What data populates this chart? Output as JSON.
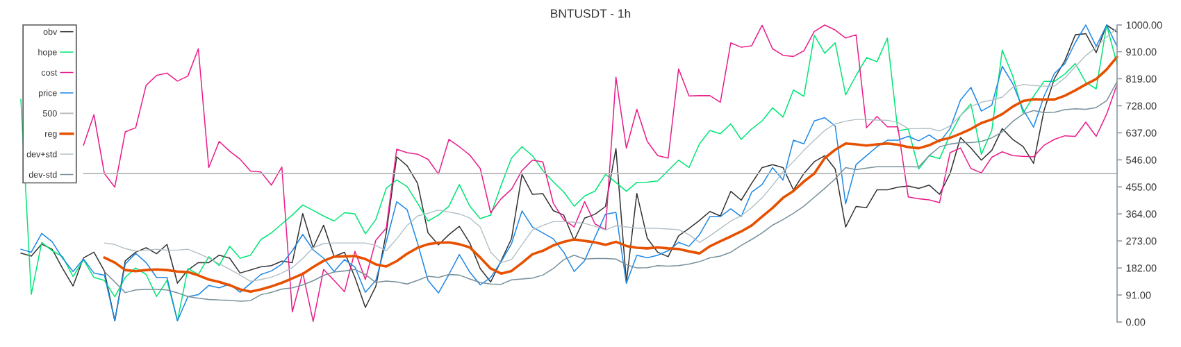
{
  "chart_data": {
    "type": "line",
    "title": "BNTUSDT - 1h",
    "categories": [
      null,
      null,
      null,
      null,
      null,
      null,
      null,
      null,
      null,
      null,
      null,
      null,
      null,
      null,
      null,
      null,
      null,
      null,
      null,
      null,
      null,
      null,
      null,
      null,
      null,
      null,
      null,
      null,
      null,
      null,
      null,
      null,
      null,
      null,
      null,
      null,
      null,
      null,
      null,
      null,
      null,
      null,
      null,
      null,
      null,
      null,
      null,
      null,
      null,
      null,
      null,
      null,
      null,
      null,
      null,
      null,
      null,
      null,
      null,
      null,
      null,
      null,
      null,
      null,
      null,
      null,
      null,
      null,
      null,
      null,
      null,
      null,
      null,
      null,
      null,
      null,
      null,
      null,
      null,
      null,
      null,
      null,
      null,
      null,
      null,
      null,
      null,
      null,
      null,
      null,
      null,
      null,
      null,
      null,
      null,
      null,
      null,
      null,
      null,
      null,
      null,
      null,
      null,
      null,
      null,
      null
    ],
    "series": [
      {
        "name": "obv",
        "color": "#333333",
        "values": [
          232,
          222,
          262,
          245,
          180,
          121,
          216,
          235,
          172,
          4,
          206,
          235,
          250,
          230,
          261,
          131,
          175,
          200,
          200,
          225,
          215,
          165,
          175,
          186,
          190,
          205,
          200,
          365,
          250,
          326,
          221,
          235,
          150,
          49,
          120,
          300,
          556,
          526,
          467,
          300,
          260,
          294,
          322,
          266,
          180,
          135,
          206,
          281,
          497,
          430,
          432,
          375,
          360,
          275,
          350,
          363,
          389,
          584,
          134,
          433,
          282,
          235,
          220,
          290,
          315,
          342,
          372,
          357,
          440,
          410,
          467,
          520,
          530,
          520,
          445,
          500,
          540,
          560,
          515,
          320,
          389,
          385,
          445,
          445,
          454,
          458,
          450,
          461,
          430,
          500,
          621,
          586,
          545,
          578,
          651,
          615,
          591,
          534,
          712,
          820,
          880,
          967,
          971,
          907,
          1000,
          976
        ]
      },
      {
        "name": "hope",
        "color": "#00e676",
        "values": [
          750,
          93,
          268,
          240,
          220,
          153,
          210,
          150,
          140,
          85,
          150,
          182,
          160,
          86,
          140,
          4,
          180,
          160,
          220,
          190,
          255,
          215,
          225,
          278,
          300,
          330,
          360,
          394,
          376,
          357,
          340,
          368,
          364,
          297,
          345,
          450,
          478,
          456,
          400,
          340,
          360,
          390,
          463,
          390,
          348,
          360,
          460,
          552,
          590,
          560,
          510,
          472,
          438,
          390,
          424,
          441,
          497,
          470,
          440,
          470,
          471,
          475,
          510,
          545,
          520,
          600,
          645,
          634,
          667,
          615,
          650,
          677,
          721,
          690,
          781,
          760,
          965,
          905,
          940,
          765,
          830,
          890,
          876,
          956,
          643,
          650,
          515,
          560,
          550,
          630,
          695,
          734,
          565,
          645,
          915,
          829,
          703,
          760,
          810,
          810,
          835,
          870,
          807,
          785,
          1000,
          868
        ]
      },
      {
        "name": "cost",
        "color": "#e91e8c",
        "values": [
          null,
          null,
          null,
          null,
          null,
          null,
          595,
          698,
          500,
          454,
          640,
          654,
          797,
          830,
          838,
          811,
          828,
          920,
          520,
          608,
          575,
          548,
          508,
          505,
          461,
          522,
          34,
          166,
          2,
          177,
          140,
          102,
          238,
          143,
          275,
          316,
          582,
          570,
          565,
          548,
          498,
          615,
          590,
          562,
          517,
          368,
          415,
          447,
          510,
          545,
          539,
          400,
          345,
          320,
          405,
          330,
          311,
          824,
          585,
          716,
          608,
          560,
          552,
          852,
          761,
          762,
          762,
          740,
          940,
          925,
          930,
          999,
          920,
          898,
          894,
          913,
          978,
          1000,
          983,
          956,
          967,
          654,
          692,
          657,
          657,
          421,
          415,
          411,
          402,
          570,
          586,
          517,
          502,
          555,
          573,
          560,
          558,
          556,
          595,
          615,
          627,
          625,
          673,
          625,
          700,
          800
        ]
      },
      {
        "name": "price",
        "color": "#1e88e5",
        "values": [
          245,
          235,
          298,
          270,
          215,
          170,
          212,
          165,
          158,
          4,
          195,
          231,
          200,
          150,
          150,
          4,
          85,
          92,
          123,
          115,
          128,
          100,
          130,
          160,
          172,
          195,
          240,
          295,
          243,
          215,
          170,
          210,
          185,
          100,
          140,
          270,
          405,
          378,
          265,
          140,
          98,
          160,
          227,
          168,
          125,
          150,
          203,
          264,
          374,
          320,
          300,
          280,
          235,
          170,
          207,
          286,
          363,
          369,
          130,
          225,
          216,
          225,
          240,
          268,
          255,
          294,
          355,
          355,
          381,
          355,
          437,
          463,
          520,
          478,
          612,
          600,
          677,
          688,
          660,
          398,
          530,
          560,
          590,
          612,
          612,
          625,
          610,
          630,
          606,
          651,
          747,
          790,
          710,
          730,
          861,
          803,
          715,
          656,
          760,
          837,
          870,
          941,
          1000,
          928,
          1000,
          928
        ]
      },
      {
        "name": "500",
        "color": "#bdbdbd",
        "values": [
          null,
          null,
          null,
          null,
          null,
          null,
          500,
          500,
          500,
          500,
          500,
          500,
          500,
          500,
          500,
          500,
          500,
          500,
          500,
          500,
          500,
          500,
          500,
          500,
          500,
          500,
          500,
          500,
          500,
          500,
          500,
          500,
          500,
          500,
          500,
          500,
          500,
          500,
          500,
          500,
          500,
          500,
          500,
          500,
          500,
          500,
          500,
          500,
          500,
          500,
          500,
          500,
          500,
          500,
          500,
          500,
          500,
          500,
          500,
          500,
          500,
          500,
          500,
          500,
          500,
          500,
          500,
          500,
          500,
          500,
          500,
          500,
          500,
          500,
          500,
          500,
          500,
          500,
          500,
          500,
          500,
          500,
          500,
          500,
          500,
          500,
          500,
          500,
          500,
          500,
          500,
          500,
          500,
          500,
          500,
          500,
          500,
          500,
          500,
          500,
          500,
          500,
          500,
          500,
          500,
          500
        ]
      },
      {
        "name": "reg",
        "color": "#e65100",
        "values": [
          null,
          null,
          null,
          null,
          null,
          null,
          null,
          null,
          217,
          200,
          175,
          171,
          175,
          177,
          175,
          170,
          168,
          157,
          143,
          135,
          124,
          110,
          102,
          110,
          120,
          132,
          147,
          162,
          185,
          206,
          220,
          221,
          222,
          212,
          194,
          187,
          205,
          230,
          250,
          262,
          267,
          268,
          262,
          251,
          217,
          180,
          163,
          172,
          199,
          228,
          240,
          258,
          270,
          278,
          273,
          268,
          260,
          270,
          256,
          250,
          248,
          251,
          248,
          246,
          238,
          231,
          255,
          272,
          288,
          305,
          325,
          355,
          384,
          418,
          441,
          473,
          500,
          552,
          580,
          601,
          598,
          594,
          598,
          601,
          597,
          589,
          585,
          595,
          612,
          620,
          634,
          650,
          670,
          682,
          700,
          725,
          744,
          750,
          749,
          749,
          762,
          780,
          800,
          818,
          850,
          893
        ]
      },
      {
        "name": "dev+std",
        "color": "#b0bec5",
        "values": [
          null,
          null,
          null,
          null,
          null,
          null,
          null,
          null,
          266,
          261,
          247,
          239,
          242,
          245,
          242,
          242,
          245,
          231,
          215,
          196,
          178,
          158,
          137,
          143,
          151,
          165,
          183,
          214,
          250,
          264,
          266,
          266,
          266,
          266,
          258,
          240,
          280,
          325,
          357,
          366,
          377,
          370,
          364,
          350,
          320,
          235,
          200,
          210,
          260,
          310,
          325,
          338,
          338,
          336,
          332,
          322,
          310,
          324,
          320,
          316,
          316,
          315,
          313,
          311,
          294,
          268,
          290,
          315,
          340,
          358,
          385,
          418,
          460,
          505,
          540,
          578,
          612,
          645,
          667,
          676,
          682,
          682,
          680,
          679,
          672,
          651,
          651,
          652,
          643,
          660,
          695,
          726,
          740,
          747,
          757,
          790,
          800,
          796,
          794,
          794,
          822,
          860,
          897,
          925,
          960,
          989
        ]
      },
      {
        "name": "dev-std",
        "color": "#78909c",
        "values": [
          null,
          null,
          null,
          null,
          null,
          null,
          null,
          null,
          170,
          135,
          99,
          108,
          110,
          110,
          108,
          98,
          86,
          80,
          76,
          74,
          73,
          70,
          72,
          92,
          100,
          111,
          115,
          125,
          139,
          157,
          168,
          172,
          177,
          160,
          133,
          138,
          135,
          128,
          140,
          154,
          150,
          160,
          158,
          145,
          133,
          128,
          127,
          142,
          145,
          148,
          158,
          180,
          210,
          225,
          212,
          214,
          214,
          212,
          193,
          182,
          183,
          190,
          188,
          190,
          195,
          203,
          216,
          222,
          235,
          258,
          278,
          300,
          326,
          345,
          366,
          390,
          420,
          450,
          482,
          520,
          513,
          518,
          523,
          523,
          523,
          523,
          522,
          560,
          590,
          599,
          604,
          604,
          608,
          620,
          640,
          675,
          700,
          712,
          705,
          706,
          715,
          718,
          716,
          722,
          745,
          810
        ]
      }
    ],
    "ylim": [
      0,
      1000
    ],
    "yticks": [
      {
        "value": 0,
        "label": "0.00"
      },
      {
        "value": 91,
        "label": "91.00"
      },
      {
        "value": 182,
        "label": "182.00"
      },
      {
        "value": 273,
        "label": "273.00"
      },
      {
        "value": 364,
        "label": "364.00"
      },
      {
        "value": 455,
        "label": "455.00"
      },
      {
        "value": 546,
        "label": "546.00"
      },
      {
        "value": 637,
        "label": "637.00"
      },
      {
        "value": 728,
        "label": "728.00"
      },
      {
        "value": 819,
        "label": "819.00"
      },
      {
        "value": 910,
        "label": "910.00"
      },
      {
        "value": 1000,
        "label": "1000.00"
      }
    ],
    "tick_labels": "y",
    "legend": "top left"
  }
}
